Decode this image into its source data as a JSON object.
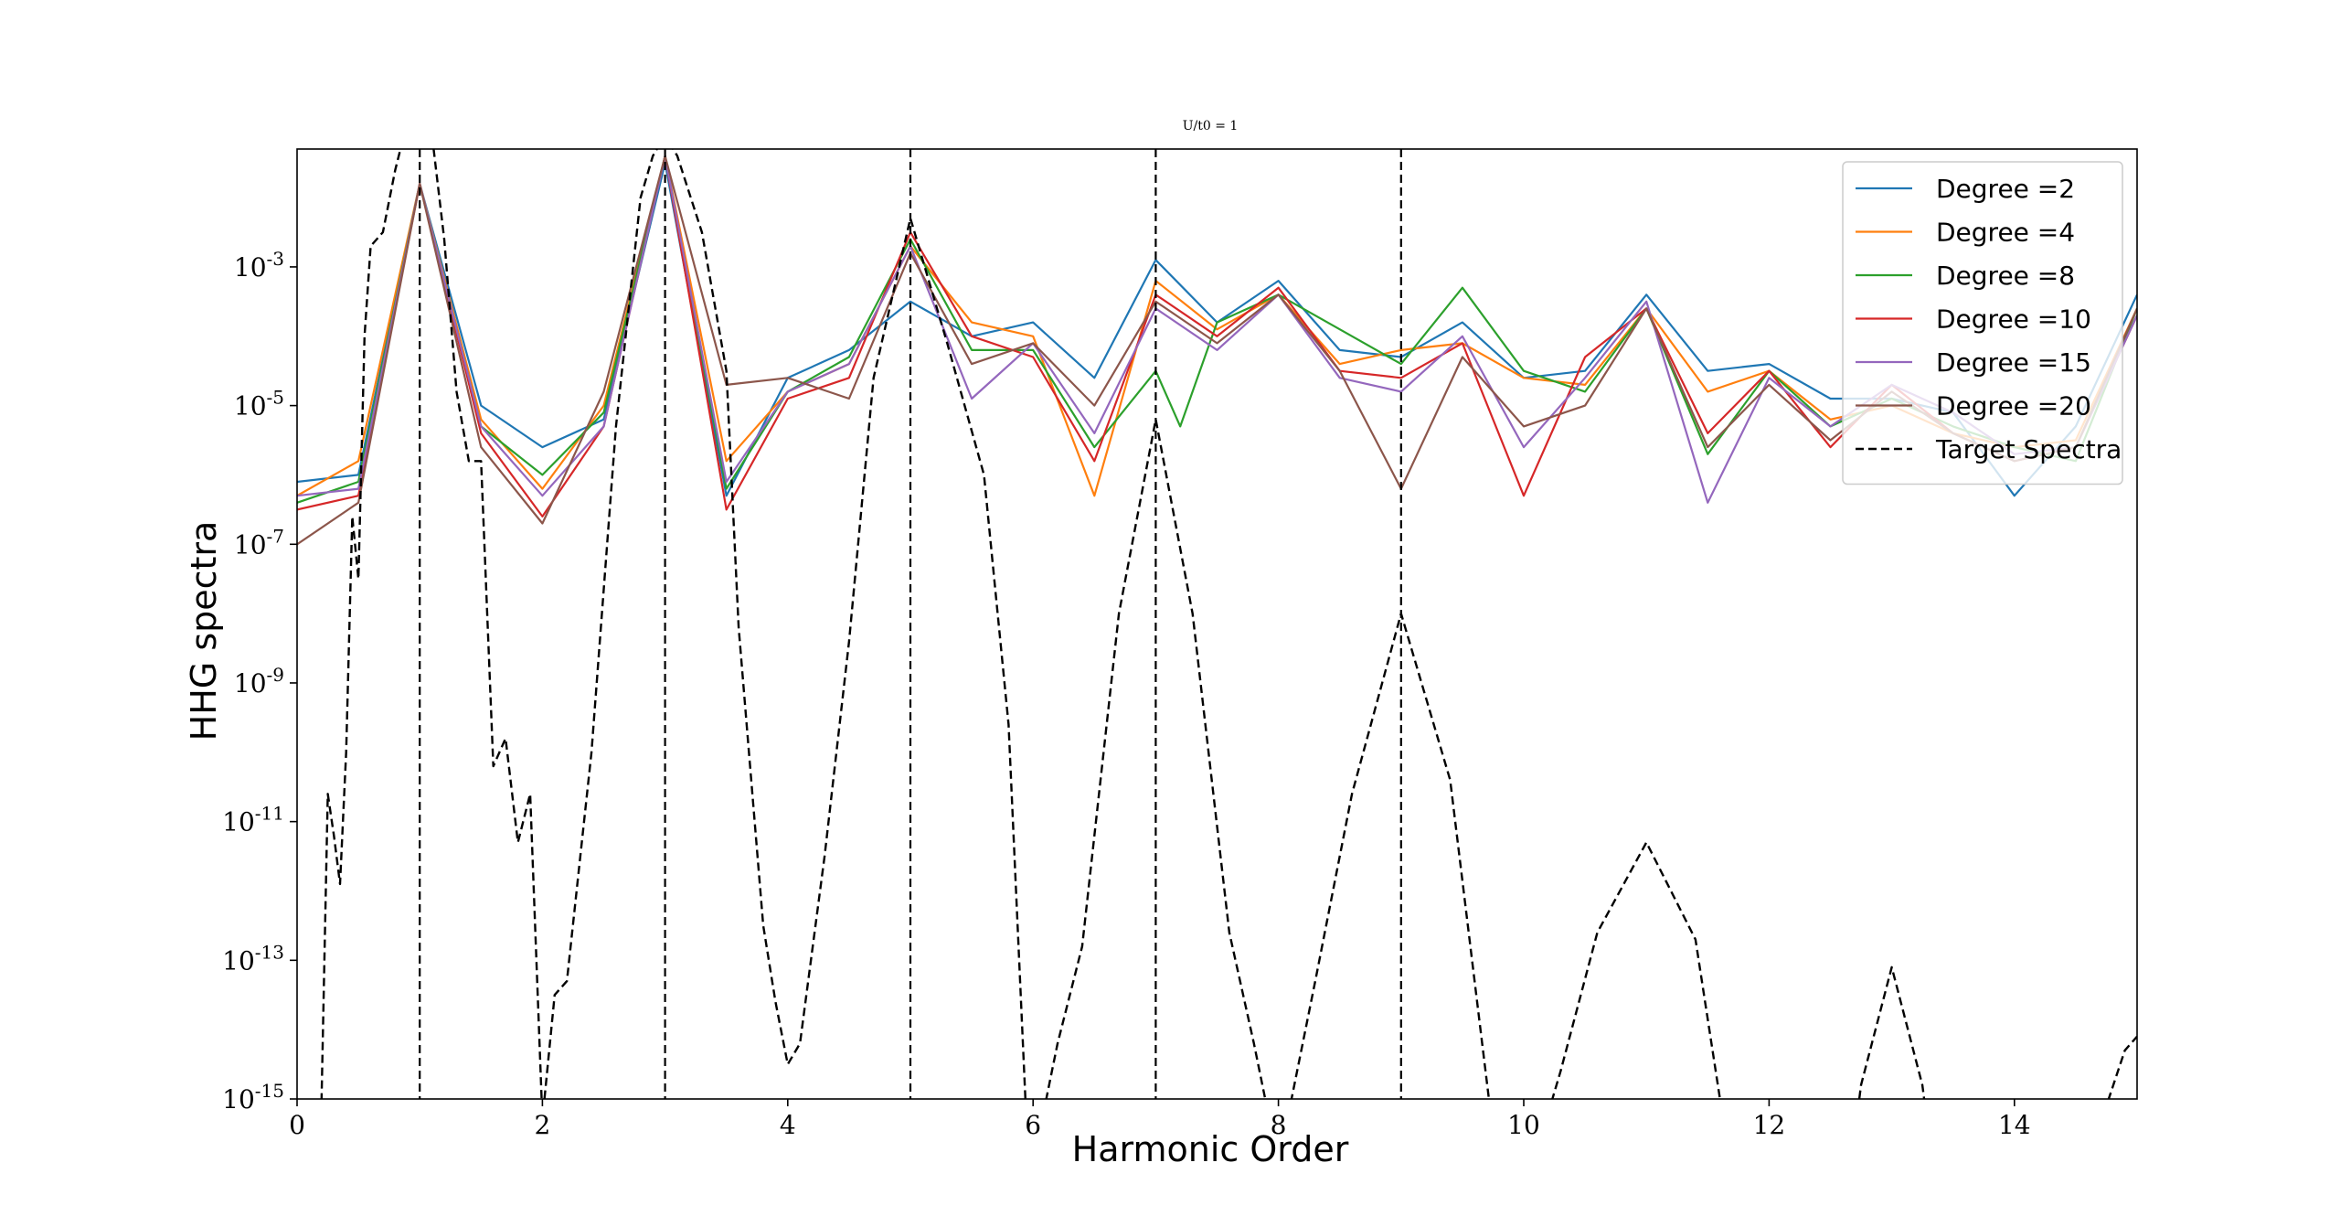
{
  "chart_data": {
    "type": "line",
    "title": "U/t0 = 1",
    "xlabel": "Harmonic Order",
    "ylabel": "HHG spectra",
    "xlim": [
      0,
      15
    ],
    "ylim_exponents": [
      -15,
      -1.3
    ],
    "yscale": "log",
    "x_ticks": [
      "0",
      "2",
      "4",
      "6",
      "8",
      "10",
      "12",
      "14"
    ],
    "y_ticks": [
      {
        "base": "10",
        "exp": "-3"
      },
      {
        "base": "10",
        "exp": "-5"
      },
      {
        "base": "10",
        "exp": "-7"
      },
      {
        "base": "10",
        "exp": "-9"
      },
      {
        "base": "10",
        "exp": "-11"
      },
      {
        "base": "10",
        "exp": "-13"
      },
      {
        "base": "10",
        "exp": "-15"
      }
    ],
    "vlines_x": [
      1,
      3,
      5,
      7,
      9
    ],
    "legend_position": "top-right",
    "series": [
      {
        "name": "Degree =2",
        "color": "#1f77b4",
        "style": "solid",
        "x": [
          0,
          0.5,
          1,
          1.5,
          2,
          2.5,
          3,
          3.5,
          4,
          4.5,
          5,
          5.5,
          6,
          6.5,
          7,
          7.5,
          8,
          8.5,
          9,
          9.5,
          10,
          10.5,
          11,
          11.5,
          12,
          12.5,
          13,
          13.5,
          14,
          14.5,
          15
        ],
        "log10_y": [
          -6.1,
          -6.0,
          -1.8,
          -5.0,
          -5.6,
          -5.2,
          -1.5,
          -6.3,
          -4.6,
          -4.2,
          -3.5,
          -4.0,
          -3.8,
          -4.6,
          -2.9,
          -3.8,
          -3.2,
          -4.2,
          -4.3,
          -3.8,
          -4.6,
          -4.5,
          -3.4,
          -4.5,
          -4.4,
          -4.9,
          -4.9,
          -5.1,
          -6.3,
          -5.3,
          -3.4
        ]
      },
      {
        "name": "Degree =4",
        "color": "#ff7f0e",
        "style": "solid",
        "x": [
          0,
          0.5,
          1,
          1.5,
          2,
          2.5,
          3,
          3.5,
          4,
          4.5,
          5,
          5.5,
          6,
          6.5,
          7,
          7.5,
          8,
          8.5,
          9,
          9.5,
          10,
          10.5,
          11,
          11.5,
          12,
          12.5,
          13,
          13.5,
          14,
          14.5,
          15
        ],
        "log10_y": [
          -6.3,
          -5.8,
          -1.8,
          -5.2,
          -6.2,
          -5.0,
          -1.4,
          -5.8,
          -4.8,
          -4.4,
          -2.7,
          -3.8,
          -4.0,
          -6.3,
          -3.2,
          -3.9,
          -3.4,
          -4.4,
          -4.2,
          -4.1,
          -4.6,
          -4.7,
          -3.6,
          -4.8,
          -4.5,
          -5.2,
          -5.0,
          -5.4,
          -5.6,
          -5.5,
          -3.6
        ]
      },
      {
        "name": "Degree =8",
        "color": "#2ca02c",
        "style": "solid",
        "x": [
          0,
          0.5,
          1,
          1.5,
          2,
          2.5,
          3,
          3.5,
          4,
          4.5,
          5,
          5.5,
          6,
          6.5,
          7,
          7.2,
          7.5,
          8,
          8.5,
          9,
          9.5,
          10,
          10.5,
          11,
          11.5,
          12,
          12.5,
          13,
          13.5,
          14,
          14.5,
          15
        ],
        "log10_y": [
          -6.4,
          -6.1,
          -1.8,
          -5.3,
          -6.0,
          -5.1,
          -1.4,
          -6.2,
          -4.8,
          -4.3,
          -2.6,
          -4.2,
          -4.2,
          -5.6,
          -4.5,
          -5.3,
          -3.8,
          -3.4,
          -3.9,
          -4.4,
          -3.3,
          -4.5,
          -4.8,
          -3.6,
          -5.7,
          -4.5,
          -5.3,
          -4.9,
          -5.3,
          -5.6,
          -5.8,
          -3.6
        ]
      },
      {
        "name": "Degree =10",
        "color": "#d62728",
        "style": "solid",
        "x": [
          0,
          0.5,
          1,
          1.5,
          2,
          2.5,
          3,
          3.5,
          4,
          4.5,
          5,
          5.5,
          6,
          6.5,
          7,
          7.5,
          8,
          8.5,
          9,
          9.5,
          10,
          10.5,
          11,
          11.5,
          12,
          12.5,
          13,
          13.5,
          14,
          14.5,
          15
        ],
        "log10_y": [
          -6.5,
          -6.3,
          -1.8,
          -5.4,
          -6.6,
          -5.3,
          -1.4,
          -6.5,
          -4.9,
          -4.6,
          -2.5,
          -4.0,
          -4.3,
          -5.8,
          -3.4,
          -4.0,
          -3.3,
          -4.5,
          -4.6,
          -4.1,
          -6.3,
          -4.3,
          -3.6,
          -5.4,
          -4.5,
          -5.6,
          -4.7,
          -5.4,
          -5.8,
          -5.6,
          -3.7
        ]
      },
      {
        "name": "Degree =15",
        "color": "#9467bd",
        "style": "solid",
        "x": [
          0,
          0.5,
          1,
          1.5,
          2,
          2.5,
          3,
          3.5,
          4,
          4.5,
          5,
          5.5,
          6,
          6.5,
          7,
          7.5,
          8,
          8.5,
          9,
          9.5,
          10,
          10.5,
          11,
          11.5,
          12,
          12.5,
          13,
          13.5,
          14,
          14.5,
          15
        ],
        "log10_y": [
          -6.3,
          -6.2,
          -1.8,
          -5.3,
          -6.3,
          -5.3,
          -1.4,
          -6.1,
          -4.8,
          -4.4,
          -2.7,
          -4.9,
          -4.1,
          -5.4,
          -3.6,
          -4.2,
          -3.4,
          -4.6,
          -4.8,
          -4.0,
          -5.6,
          -4.6,
          -3.5,
          -6.4,
          -4.6,
          -5.3,
          -4.7,
          -5.1,
          -5.7,
          -5.6,
          -3.7
        ]
      },
      {
        "name": "Degree =20",
        "color": "#8c564b",
        "style": "solid",
        "x": [
          0,
          0.5,
          1,
          1.5,
          2,
          2.5,
          3,
          3.5,
          4,
          4.5,
          5,
          5.5,
          6,
          6.5,
          7,
          7.5,
          8,
          8.5,
          9,
          9.5,
          10,
          10.5,
          11,
          11.5,
          12,
          12.5,
          13,
          13.5,
          14,
          14.5,
          15
        ],
        "log10_y": [
          -7.0,
          -6.4,
          -1.8,
          -5.6,
          -6.7,
          -4.8,
          -1.4,
          -4.7,
          -4.6,
          -4.9,
          -2.8,
          -4.4,
          -4.1,
          -5.0,
          -3.5,
          -4.1,
          -3.4,
          -4.5,
          -6.2,
          -4.3,
          -5.3,
          -5.0,
          -3.6,
          -5.6,
          -4.7,
          -5.5,
          -4.8,
          -5.4,
          -5.8,
          -5.6,
          -3.6
        ]
      },
      {
        "name": "Target Spectra",
        "color": "#000000",
        "style": "dashed",
        "x": [
          0,
          0.15,
          0.2,
          0.25,
          0.3,
          0.35,
          0.4,
          0.45,
          0.5,
          0.55,
          0.6,
          0.7,
          0.8,
          0.9,
          1,
          1.1,
          1.2,
          1.3,
          1.4,
          1.5,
          1.6,
          1.7,
          1.8,
          1.9,
          2.0,
          2.1,
          2.2,
          2.4,
          2.6,
          2.8,
          2.9,
          3.0,
          3.1,
          3.3,
          3.5,
          3.6,
          3.8,
          3.9,
          4.0,
          4.1,
          4.3,
          4.5,
          4.7,
          5.0,
          5.3,
          5.6,
          5.8,
          5.95,
          6.05,
          6.2,
          6.4,
          6.7,
          7.0,
          7.3,
          7.6,
          7.8,
          7.95,
          8.05,
          8.3,
          8.6,
          9.0,
          9.4,
          9.75,
          9.85,
          10.15,
          10.3,
          10.6,
          11.0,
          11.4,
          11.6,
          11.7,
          12.7,
          12.75,
          13.0,
          13.25,
          13.3,
          14.7,
          14.75,
          14.9,
          15
        ],
        "log10_y": [
          -15.5,
          -15.5,
          -15.0,
          -10.6,
          -11.2,
          -11.9,
          -10.0,
          -6.6,
          -7.5,
          -4.0,
          -2.7,
          -2.5,
          -1.6,
          -0.9,
          -0.7,
          -1.1,
          -2.6,
          -4.8,
          -5.8,
          -5.8,
          -10.2,
          -9.8,
          -11.3,
          -10.6,
          -15.3,
          -13.5,
          -13.3,
          -10.0,
          -5.3,
          -2.0,
          -1.4,
          -1.1,
          -1.4,
          -2.5,
          -4.5,
          -8.2,
          -12.5,
          -13.6,
          -14.5,
          -14.2,
          -11.5,
          -8.4,
          -4.6,
          -2.3,
          -4.1,
          -6.0,
          -9.6,
          -15.5,
          -15.5,
          -14.2,
          -12.8,
          -8.0,
          -5.2,
          -8.0,
          -12.6,
          -14.2,
          -15.5,
          -15.5,
          -13.3,
          -10.6,
          -8.0,
          -10.4,
          -15.5,
          -15.5,
          -15.5,
          -14.6,
          -12.6,
          -11.3,
          -12.7,
          -15.0,
          -15.5,
          -15.5,
          -14.8,
          -13.1,
          -14.8,
          -15.5,
          -15.5,
          -15.1,
          -14.3,
          -14.1
        ]
      }
    ]
  }
}
